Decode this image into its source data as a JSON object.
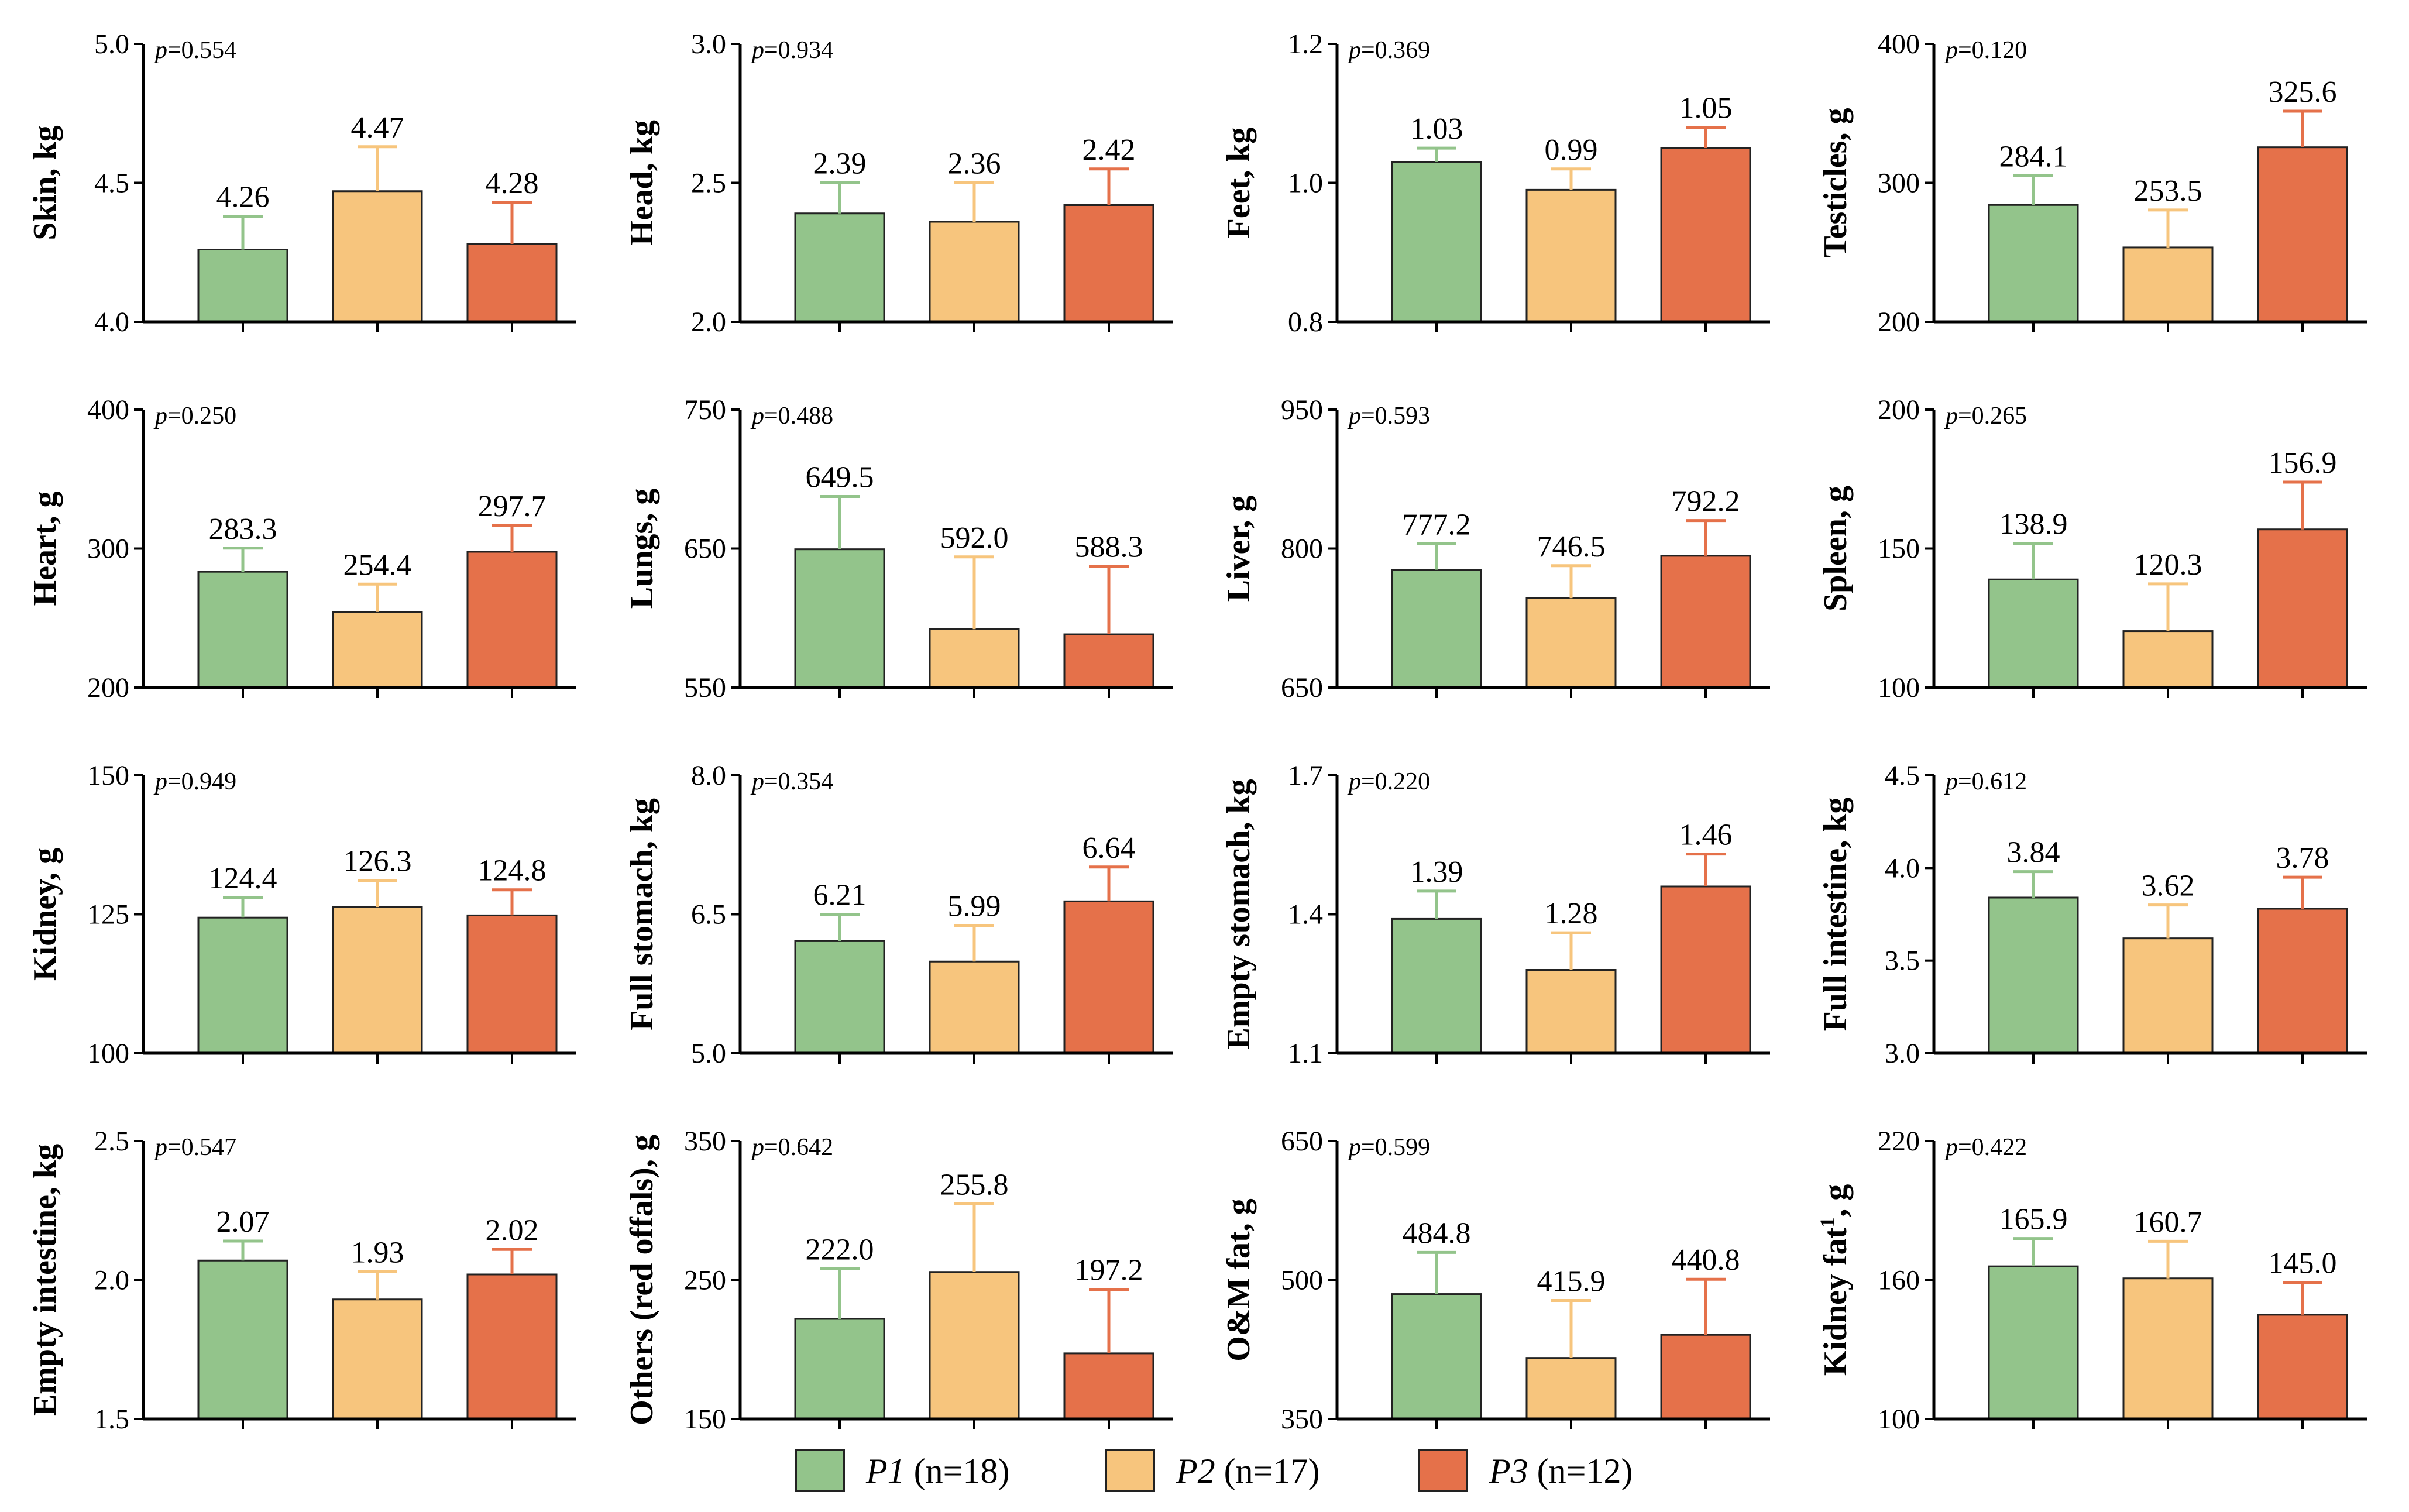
{
  "colors": {
    "P1": "#93c48b",
    "P2": "#f7c57d",
    "P3": "#e5714a"
  },
  "legend": [
    {
      "key": "P1",
      "name": "P1",
      "n": "(n=18)"
    },
    {
      "key": "P2",
      "name": "P2",
      "n": "(n=17)"
    },
    {
      "key": "P3",
      "name": "P3",
      "n": "(n=12)"
    }
  ],
  "chart_data": [
    {
      "type": "bar",
      "ylabel": "Skin, kg",
      "ylim": [
        4.0,
        5.0
      ],
      "yticks": [
        "4.0",
        "4.5",
        "5.0"
      ],
      "p": "0.554",
      "categories": [
        "P1",
        "P2",
        "P3"
      ],
      "values": [
        4.26,
        4.47,
        4.28
      ],
      "labels": [
        "4.26",
        "4.47",
        "4.28"
      ],
      "err": [
        0.12,
        0.16,
        0.15
      ]
    },
    {
      "type": "bar",
      "ylabel": "Head, kg",
      "ylim": [
        2.0,
        3.0
      ],
      "yticks": [
        "2.0",
        "2.5",
        "3.0"
      ],
      "p": "0.934",
      "categories": [
        "P1",
        "P2",
        "P3"
      ],
      "values": [
        2.39,
        2.36,
        2.42
      ],
      "labels": [
        "2.39",
        "2.36",
        "2.42"
      ],
      "err": [
        0.11,
        0.14,
        0.13
      ]
    },
    {
      "type": "bar",
      "ylabel": "Feet, kg",
      "ylim": [
        0.8,
        1.2
      ],
      "yticks": [
        "0.8",
        "1.0",
        "1.2"
      ],
      "p": "0.369",
      "categories": [
        "P1",
        "P2",
        "P3"
      ],
      "values": [
        1.03,
        0.99,
        1.05
      ],
      "labels": [
        "1.03",
        "0.99",
        "1.05"
      ],
      "err": [
        0.02,
        0.03,
        0.03
      ]
    },
    {
      "type": "bar",
      "ylabel": "Testicles, g",
      "ylim": [
        200,
        400
      ],
      "yticks": [
        "200",
        "300",
        "400"
      ],
      "p": "0.120",
      "categories": [
        "P1",
        "P2",
        "P3"
      ],
      "values": [
        284.1,
        253.5,
        325.6
      ],
      "labels": [
        "284.1",
        "253.5",
        "325.6"
      ],
      "err": [
        21,
        27,
        26
      ]
    },
    {
      "type": "bar",
      "ylabel": "Heart, g",
      "ylim": [
        200,
        400
      ],
      "yticks": [
        "200",
        "300",
        "400"
      ],
      "p": "0.250",
      "categories": [
        "P1",
        "P2",
        "P3"
      ],
      "values": [
        283.3,
        254.4,
        297.7
      ],
      "labels": [
        "283.3",
        "254.4",
        "297.7"
      ],
      "err": [
        17,
        20,
        19
      ]
    },
    {
      "type": "bar",
      "ylabel": "Lungs, g",
      "ylim": [
        550,
        750
      ],
      "yticks": [
        "550",
        "650",
        "750"
      ],
      "p": "0.488",
      "categories": [
        "P1",
        "P2",
        "P3"
      ],
      "values": [
        649.5,
        592.0,
        588.3
      ],
      "labels": [
        "649.5",
        "592.0",
        "588.3"
      ],
      "err": [
        38,
        52,
        49
      ]
    },
    {
      "type": "bar",
      "ylabel": "Liver, g",
      "ylim": [
        650,
        950
      ],
      "yticks": [
        "650",
        "800",
        "950"
      ],
      "p": "0.593",
      "categories": [
        "P1",
        "P2",
        "P3"
      ],
      "values": [
        777.2,
        746.5,
        792.2
      ],
      "labels": [
        "777.2",
        "746.5",
        "792.2"
      ],
      "err": [
        28,
        35,
        38
      ]
    },
    {
      "type": "bar",
      "ylabel": "Spleen, g",
      "ylim": [
        100,
        200
      ],
      "yticks": [
        "100",
        "150",
        "200"
      ],
      "p": "0.265",
      "categories": [
        "P1",
        "P2",
        "P3"
      ],
      "values": [
        138.9,
        120.3,
        156.9
      ],
      "labels": [
        "138.9",
        "120.3",
        "156.9"
      ],
      "err": [
        13,
        17,
        17
      ]
    },
    {
      "type": "bar",
      "ylabel": "Kidney, g",
      "ylim": [
        100,
        150
      ],
      "yticks": [
        "100",
        "125",
        "150"
      ],
      "p": "0.949",
      "categories": [
        "P1",
        "P2",
        "P3"
      ],
      "values": [
        124.4,
        126.3,
        124.8
      ],
      "labels": [
        "124.4",
        "126.3",
        "124.8"
      ],
      "err": [
        3.6,
        4.8,
        4.6
      ]
    },
    {
      "type": "bar",
      "ylabel": "Full stomach, kg",
      "ylim": [
        5.0,
        8.0
      ],
      "yticks": [
        "5.0",
        "6.5",
        "8.0"
      ],
      "p": "0.354",
      "categories": [
        "P1",
        "P2",
        "P3"
      ],
      "values": [
        6.21,
        5.99,
        6.64
      ],
      "labels": [
        "6.21",
        "5.99",
        "6.64"
      ],
      "err": [
        0.29,
        0.39,
        0.37
      ]
    },
    {
      "type": "bar",
      "ylabel": "Empty stomach, kg",
      "ylim": [
        1.1,
        1.7
      ],
      "yticks": [
        "1.1",
        "1.4",
        "1.7"
      ],
      "p": "0.220",
      "categories": [
        "P1",
        "P2",
        "P3"
      ],
      "values": [
        1.39,
        1.28,
        1.46
      ],
      "labels": [
        "1.39",
        "1.28",
        "1.46"
      ],
      "err": [
        0.06,
        0.08,
        0.07
      ]
    },
    {
      "type": "bar",
      "ylabel": "Full intestine, kg",
      "ylim": [
        3.0,
        4.5
      ],
      "yticks": [
        "3.0",
        "3.5",
        "4.0",
        "4.5"
      ],
      "p": "0.612",
      "categories": [
        "P1",
        "P2",
        "P3"
      ],
      "values": [
        3.84,
        3.62,
        3.78
      ],
      "labels": [
        "3.84",
        "3.62",
        "3.78"
      ],
      "err": [
        0.14,
        0.18,
        0.17
      ]
    },
    {
      "type": "bar",
      "ylabel": "Empty intestine, kg",
      "ylim": [
        1.5,
        2.5
      ],
      "yticks": [
        "1.5",
        "2.0",
        "2.5"
      ],
      "p": "0.547",
      "categories": [
        "P1",
        "P2",
        "P3"
      ],
      "values": [
        2.07,
        1.93,
        2.02
      ],
      "labels": [
        "2.07",
        "1.93",
        "2.02"
      ],
      "err": [
        0.07,
        0.1,
        0.09
      ]
    },
    {
      "type": "bar",
      "ylabel": "Others (red offals), g",
      "ylim": [
        150,
        350
      ],
      "yticks": [
        "150",
        "250",
        "350"
      ],
      "p": "0.642",
      "categories": [
        "P1",
        "P2",
        "P3"
      ],
      "values": [
        222.0,
        255.8,
        197.2
      ],
      "labels": [
        "222.0",
        "255.8",
        "197.2"
      ],
      "err": [
        36,
        49,
        46
      ]
    },
    {
      "type": "bar",
      "ylabel": "O&M fat, g",
      "ylim": [
        350,
        650
      ],
      "yticks": [
        "350",
        "500",
        "650"
      ],
      "p": "0.599",
      "categories": [
        "P1",
        "P2",
        "P3"
      ],
      "values": [
        484.8,
        415.9,
        440.8
      ],
      "labels": [
        "484.8",
        "415.9",
        "440.8"
      ],
      "err": [
        45,
        62,
        60
      ]
    },
    {
      "type": "bar",
      "ylabel": "Kidney fat",
      "ylabel_sup": "1",
      "ylabel_suffix": ", g",
      "ylim": [
        100,
        220
      ],
      "yticks": [
        "100",
        "160",
        "220"
      ],
      "p": "0.422",
      "categories": [
        "P1",
        "P2",
        "P3"
      ],
      "values": [
        165.9,
        160.7,
        145.0
      ],
      "labels": [
        "165.9",
        "160.7",
        "145.0"
      ],
      "err": [
        12,
        16,
        14
      ]
    }
  ]
}
